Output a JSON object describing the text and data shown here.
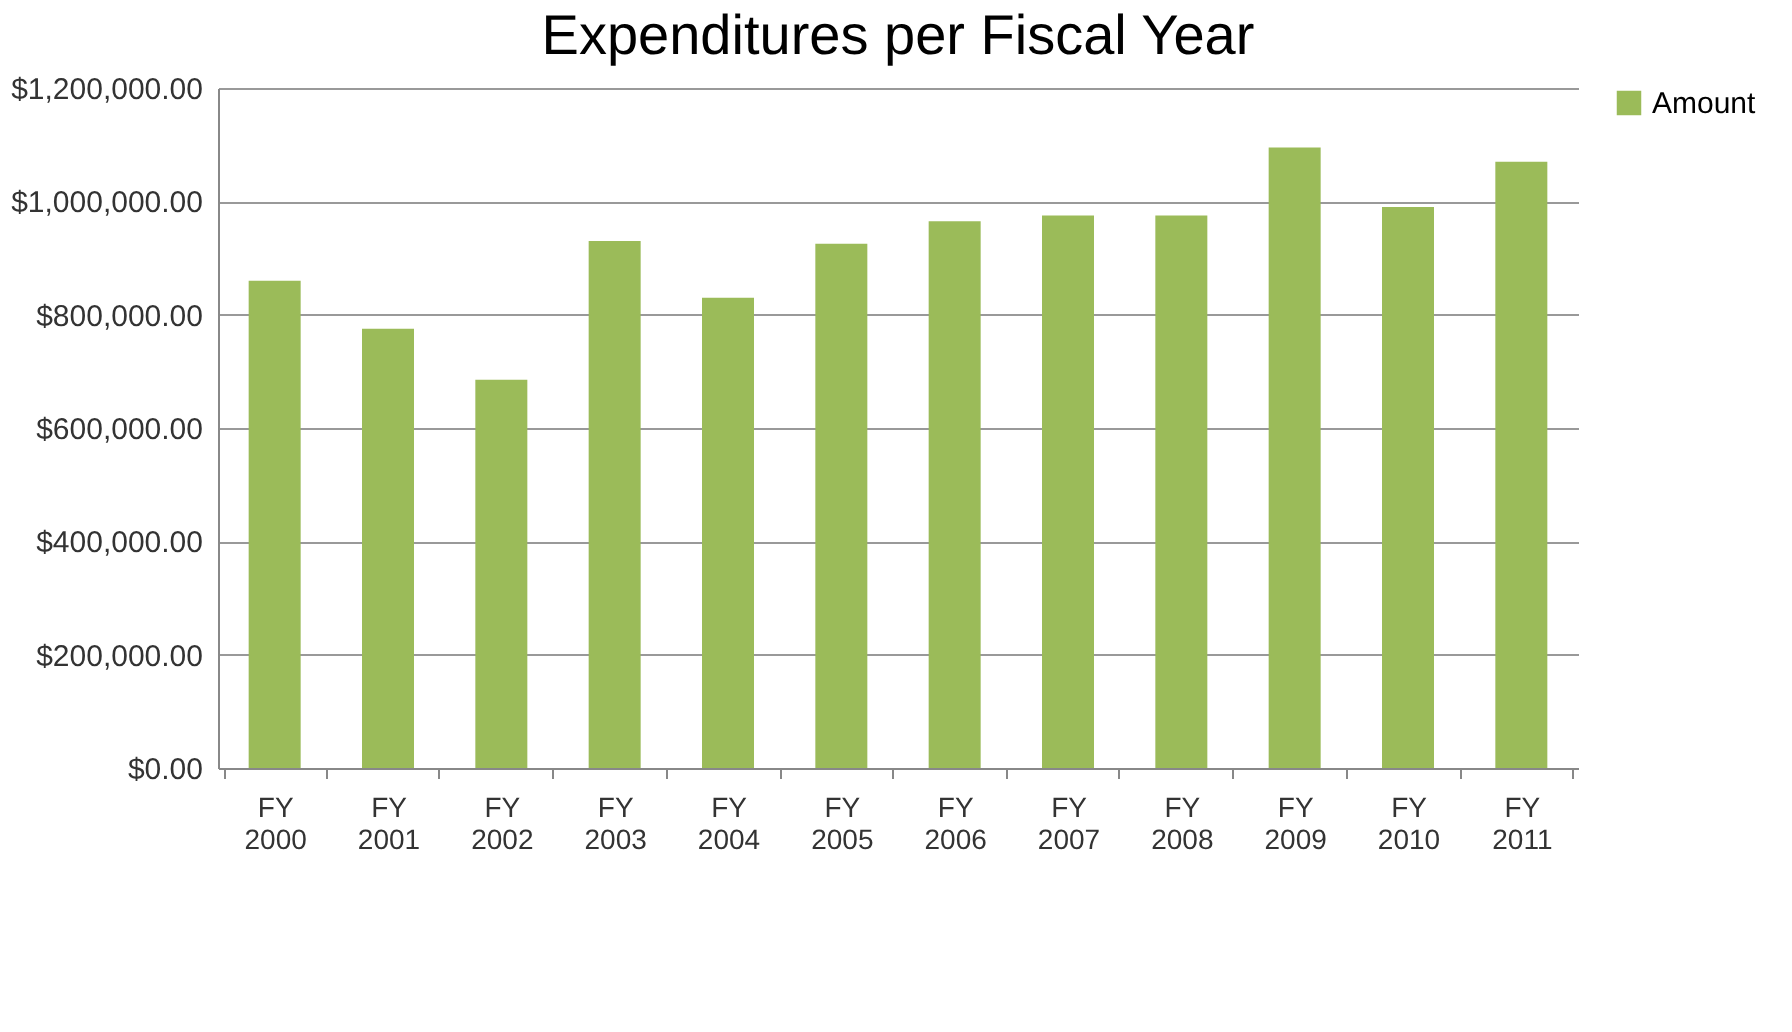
{
  "chart_data": {
    "type": "bar",
    "title": "Expenditures per Fiscal Year",
    "categories": [
      "FY 2000",
      "FY 2001",
      "FY 2002",
      "FY 2003",
      "FY 2004",
      "FY 2005",
      "FY 2006",
      "FY 2007",
      "FY 2008",
      "FY 2009",
      "FY 2010",
      "FY 2011"
    ],
    "series": [
      {
        "name": "Amount",
        "color": "#9bbb59",
        "values": [
          860000,
          775000,
          685000,
          930000,
          830000,
          925000,
          965000,
          975000,
          975000,
          1095000,
          990000,
          1070000
        ]
      }
    ],
    "ylim": [
      0,
      1200000
    ],
    "yticks": [
      {
        "value": 0,
        "label": "$0.00"
      },
      {
        "value": 200000,
        "label": "$200,000.00"
      },
      {
        "value": 400000,
        "label": "$400,000.00"
      },
      {
        "value": 600000,
        "label": "$600,000.00"
      },
      {
        "value": 800000,
        "label": "$800,000.00"
      },
      {
        "value": 1000000,
        "label": "$1,000,000.00"
      },
      {
        "value": 1200000,
        "label": "$1,200,000.00"
      }
    ],
    "grid": "y",
    "legend": "right"
  }
}
